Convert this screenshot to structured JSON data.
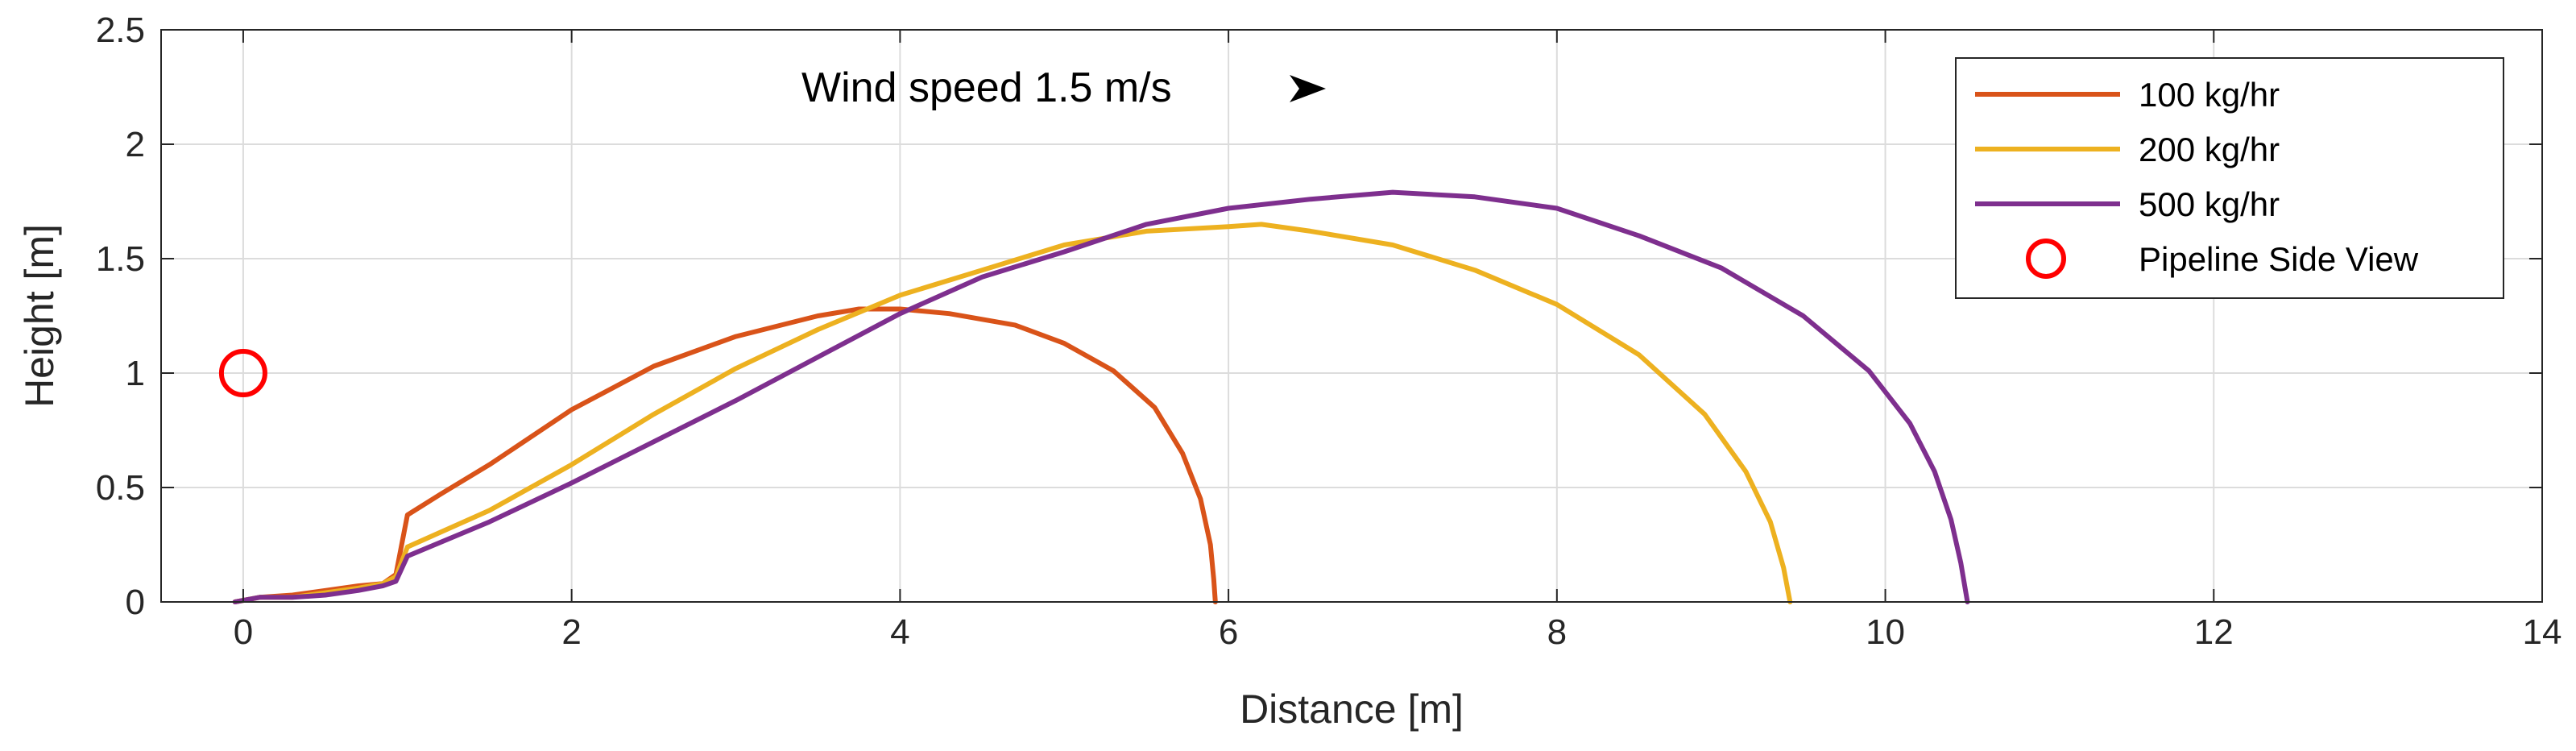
{
  "chart_data": {
    "type": "line",
    "title": "",
    "xlabel": "Distance [m]",
    "ylabel": "Height [m]",
    "xlim": [
      -0.5,
      14
    ],
    "ylim": [
      0,
      2.5
    ],
    "xticks": [
      "0",
      "2",
      "4",
      "6",
      "8",
      "10",
      "12",
      "14"
    ],
    "yticks": [
      "0",
      "0.5",
      "1",
      "1.5",
      "2",
      "2.5"
    ],
    "grid": true,
    "legend_position": "top-right",
    "annotation": {
      "text": "Wind speed 1.5 m/s",
      "arrow_icon": "arrow-right-icon",
      "x": 3.4,
      "y": 2.25
    },
    "series": [
      {
        "name": "100 kg/hr",
        "color": "#D95319",
        "points": [
          [
            -0.05,
            0.0
          ],
          [
            0.1,
            0.02
          ],
          [
            0.3,
            0.03
          ],
          [
            0.5,
            0.05
          ],
          [
            0.7,
            0.07
          ],
          [
            0.85,
            0.08
          ],
          [
            0.93,
            0.12
          ],
          [
            1.0,
            0.38
          ],
          [
            1.2,
            0.47
          ],
          [
            1.5,
            0.6
          ],
          [
            2.0,
            0.84
          ],
          [
            2.5,
            1.03
          ],
          [
            3.0,
            1.16
          ],
          [
            3.5,
            1.25
          ],
          [
            3.75,
            1.28
          ],
          [
            4.0,
            1.28
          ],
          [
            4.3,
            1.26
          ],
          [
            4.7,
            1.21
          ],
          [
            5.0,
            1.13
          ],
          [
            5.3,
            1.01
          ],
          [
            5.55,
            0.85
          ],
          [
            5.72,
            0.65
          ],
          [
            5.83,
            0.45
          ],
          [
            5.89,
            0.25
          ],
          [
            5.91,
            0.1
          ],
          [
            5.92,
            0.0
          ]
        ]
      },
      {
        "name": "200 kg/hr",
        "color": "#EDB120",
        "points": [
          [
            -0.05,
            0.0
          ],
          [
            0.1,
            0.02
          ],
          [
            0.3,
            0.02
          ],
          [
            0.5,
            0.04
          ],
          [
            0.7,
            0.06
          ],
          [
            0.85,
            0.08
          ],
          [
            0.93,
            0.11
          ],
          [
            1.0,
            0.24
          ],
          [
            1.5,
            0.4
          ],
          [
            2.0,
            0.6
          ],
          [
            2.5,
            0.82
          ],
          [
            3.0,
            1.02
          ],
          [
            3.5,
            1.19
          ],
          [
            4.0,
            1.34
          ],
          [
            4.5,
            1.45
          ],
          [
            5.0,
            1.56
          ],
          [
            5.5,
            1.62
          ],
          [
            6.0,
            1.64
          ],
          [
            6.2,
            1.65
          ],
          [
            6.5,
            1.62
          ],
          [
            7.0,
            1.56
          ],
          [
            7.5,
            1.45
          ],
          [
            8.0,
            1.3
          ],
          [
            8.5,
            1.08
          ],
          [
            8.9,
            0.82
          ],
          [
            9.15,
            0.57
          ],
          [
            9.3,
            0.35
          ],
          [
            9.38,
            0.15
          ],
          [
            9.42,
            0.0
          ]
        ]
      },
      {
        "name": "500 kg/hr",
        "color": "#7E2F8E",
        "points": [
          [
            -0.05,
            0.0
          ],
          [
            0.1,
            0.02
          ],
          [
            0.3,
            0.02
          ],
          [
            0.5,
            0.03
          ],
          [
            0.7,
            0.05
          ],
          [
            0.85,
            0.07
          ],
          [
            0.93,
            0.09
          ],
          [
            1.0,
            0.2
          ],
          [
            1.5,
            0.35
          ],
          [
            2.0,
            0.52
          ],
          [
            2.5,
            0.7
          ],
          [
            3.0,
            0.88
          ],
          [
            3.5,
            1.07
          ],
          [
            4.0,
            1.26
          ],
          [
            4.5,
            1.42
          ],
          [
            5.0,
            1.53
          ],
          [
            5.5,
            1.65
          ],
          [
            6.0,
            1.72
          ],
          [
            6.5,
            1.76
          ],
          [
            7.0,
            1.79
          ],
          [
            7.5,
            1.77
          ],
          [
            8.0,
            1.72
          ],
          [
            8.5,
            1.6
          ],
          [
            9.0,
            1.46
          ],
          [
            9.5,
            1.25
          ],
          [
            9.9,
            1.01
          ],
          [
            10.15,
            0.78
          ],
          [
            10.3,
            0.57
          ],
          [
            10.4,
            0.36
          ],
          [
            10.46,
            0.17
          ],
          [
            10.5,
            0.0
          ]
        ]
      },
      {
        "name": "Pipeline Side View",
        "color": "#FF0000",
        "marker": "circle",
        "points": [
          [
            0.0,
            1.0
          ]
        ]
      }
    ]
  }
}
